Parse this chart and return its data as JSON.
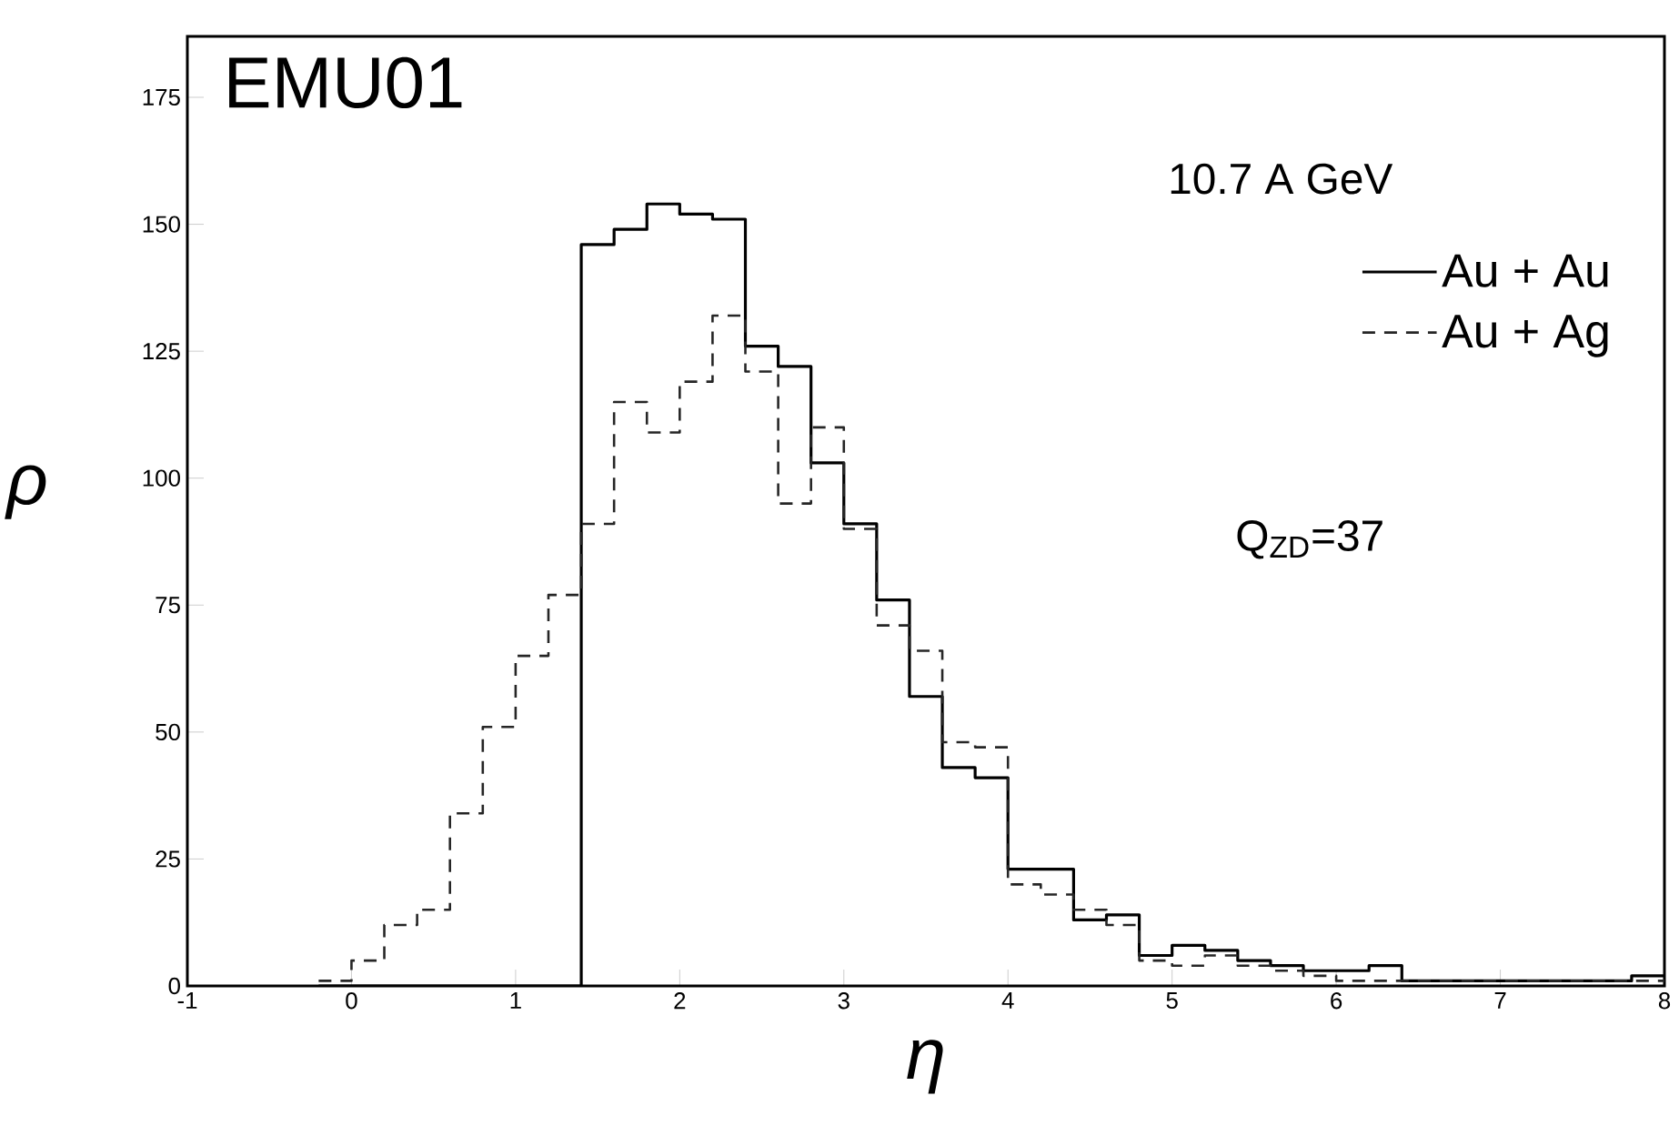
{
  "chart_data": {
    "type": "histogram",
    "title": "EMU01",
    "xlabel": "η",
    "ylabel": "ρ",
    "annotations": [
      "10.7 A GeV",
      "Q$_{ZD}$=37"
    ],
    "bins": [
      -0.2,
      0.0,
      0.2,
      0.4,
      0.6,
      0.8,
      1.0,
      1.2,
      1.4,
      1.6,
      1.8,
      2.0,
      2.2,
      2.4,
      2.6,
      2.8,
      3.0,
      3.2,
      3.4,
      3.6,
      3.8,
      4.0,
      4.2,
      4.4,
      4.6,
      4.8,
      5.0,
      5.2,
      5.4,
      5.6,
      5.8,
      6.0,
      6.2,
      6.4,
      6.6,
      6.8,
      7.0,
      7.2,
      7.4,
      7.6,
      7.8,
      8.0
    ],
    "series": [
      {
        "name": "Au + Au",
        "color": "#000000",
        "line_style": "solid",
        "values": [
          0,
          0,
          0,
          0,
          0,
          0,
          0,
          0,
          146,
          149,
          154,
          152,
          151,
          126,
          122,
          103,
          91,
          76,
          57,
          43,
          41,
          23,
          23,
          13,
          14,
          6,
          8,
          7,
          5,
          4,
          3,
          3,
          4,
          1,
          1,
          1,
          1,
          1,
          1,
          1,
          2
        ]
      },
      {
        "name": "Au + Ag",
        "color": "#262626",
        "line_style": "dashed",
        "values": [
          1,
          5,
          12,
          15,
          34,
          51,
          65,
          77,
          91,
          115,
          109,
          119,
          132,
          121,
          95,
          110,
          90,
          71,
          66,
          48,
          47,
          20,
          18,
          15,
          12,
          5,
          4,
          6,
          4,
          3,
          2,
          1,
          1,
          1,
          1,
          1,
          1,
          1,
          1,
          1,
          1
        ]
      }
    ],
    "xlim": [
      -1,
      8
    ],
    "ylim": [
      0,
      187
    ],
    "xticks": [
      -1,
      0,
      1,
      2,
      3,
      4,
      5,
      6,
      7,
      8
    ],
    "yticks": [
      0,
      25,
      50,
      75,
      100,
      125,
      150,
      175
    ],
    "grid": false,
    "legend": "right"
  }
}
